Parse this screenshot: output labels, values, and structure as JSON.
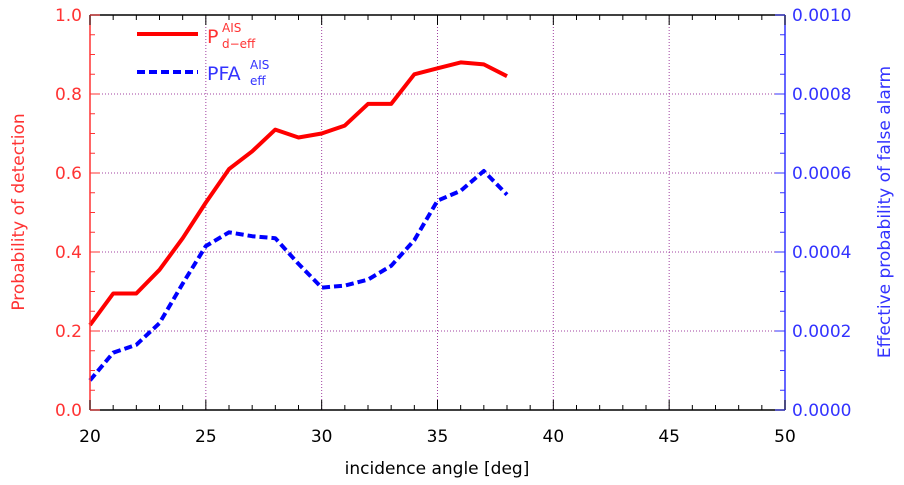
{
  "chart_data": {
    "type": "line",
    "xlabel": "incidence angle [deg]",
    "ylabel_left": "Probability of detection",
    "ylabel_right": "Effective probability of false alarm",
    "xlim": [
      20,
      50
    ],
    "ylim_left": [
      0,
      1.0
    ],
    "ylim_right": [
      0,
      0.001
    ],
    "x_ticks": [
      "20",
      "25",
      "30",
      "35",
      "40",
      "45",
      "50"
    ],
    "y_ticks_left": [
      "0.0",
      "0.2",
      "0.4",
      "0.6",
      "0.8",
      "1.0"
    ],
    "y_ticks_right": [
      "0.0000",
      "0.0002",
      "0.0004",
      "0.0006",
      "0.0008",
      "0.0010"
    ],
    "grid": true,
    "legend_position": "top-left",
    "series": [
      {
        "legend_main": "P",
        "legend_sup": "AIS",
        "legend_sub": "d−eff",
        "axis": "left",
        "color": "#ff0000",
        "style": "solid",
        "x": [
          20,
          21,
          22,
          23,
          24,
          25,
          26,
          27,
          28,
          29,
          30,
          31,
          32,
          33,
          34,
          35,
          36,
          37,
          38
        ],
        "y": [
          0.215,
          0.295,
          0.295,
          0.355,
          0.435,
          0.525,
          0.61,
          0.655,
          0.71,
          0.69,
          0.7,
          0.72,
          0.775,
          0.775,
          0.85,
          0.865,
          0.88,
          0.875,
          0.845
        ]
      },
      {
        "legend_main": "PFA",
        "legend_sup": "AIS",
        "legend_sub": "eff",
        "axis": "right",
        "color": "#0000ff",
        "style": "dashed",
        "x": [
          20,
          21,
          22,
          23,
          24,
          25,
          26,
          27,
          28,
          29,
          30,
          31,
          32,
          33,
          34,
          35,
          36,
          37,
          38
        ],
        "y": [
          7.5e-05,
          0.000145,
          0.000165,
          0.00022,
          0.00032,
          0.000415,
          0.00045,
          0.00044,
          0.000435,
          0.00037,
          0.00031,
          0.000315,
          0.00033,
          0.000365,
          0.00043,
          0.00053,
          0.000555,
          0.000605,
          0.000545
        ]
      }
    ],
    "colors": {
      "left_axis": "#ff3333",
      "right_axis": "#3333ff",
      "bottom_axis": "#000000",
      "grid": "#a040a0"
    }
  }
}
